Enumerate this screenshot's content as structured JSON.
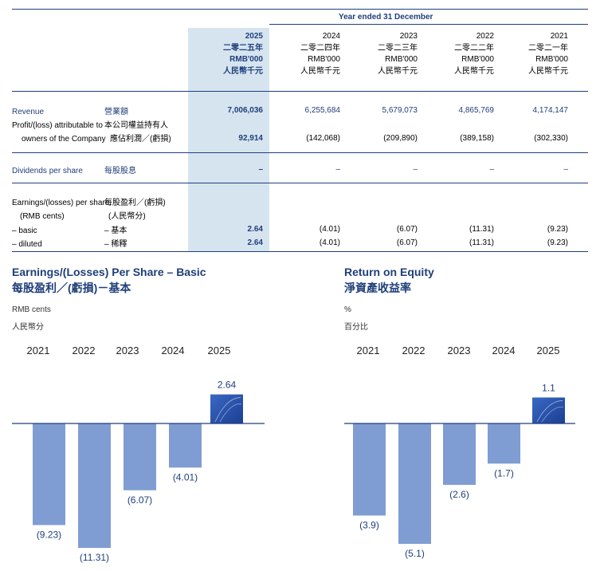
{
  "table": {
    "header_title": "Year ended 31 December",
    "columns": [
      {
        "year": "2025",
        "cn_year": "二零二五年",
        "unit": "RMB'000",
        "unit_cn": "人民幣千元"
      },
      {
        "year": "2024",
        "cn_year": "二零二四年",
        "unit": "RMB'000",
        "unit_cn": "人民幣千元"
      },
      {
        "year": "2023",
        "cn_year": "二零二三年",
        "unit": "RMB'000",
        "unit_cn": "人民幣千元"
      },
      {
        "year": "2022",
        "cn_year": "二零二二年",
        "unit": "RMB'000",
        "unit_cn": "人民幣千元"
      },
      {
        "year": "2021",
        "cn_year": "二零二一年",
        "unit": "RMB'000",
        "unit_cn": "人民幣千元"
      }
    ],
    "revenue": {
      "label": "Revenue",
      "label_cn": "營業額",
      "values": [
        "7,006,036",
        "6,255,684",
        "5,679,073",
        "4,865,769",
        "4,174,147"
      ]
    },
    "profit": {
      "label1": "Profit/(loss) attributable to",
      "label2": "owners of the Company",
      "label_cn1": "本公司權益持有人",
      "label_cn2": "應佔利潤／(虧損)",
      "values": [
        "92,914",
        "(142,068)",
        "(209,890)",
        "(389,158)",
        "(302,330)"
      ]
    },
    "dividends": {
      "label": "Dividends per share",
      "label_cn": "每股股息",
      "values": [
        "–",
        "–",
        "–",
        "–",
        "–"
      ]
    },
    "eps": {
      "label1": "Earnings/(losses) per share",
      "label2": "(RMB cents)",
      "label_cn1": "每股盈利／(虧損)",
      "label_cn2": "(人民幣分)"
    },
    "basic": {
      "label": "– basic",
      "label_cn": "– 基本",
      "values": [
        "2.64",
        "(4.01)",
        "(6.07)",
        "(11.31)",
        "(9.23)"
      ]
    },
    "diluted": {
      "label": "– diluted",
      "label_cn": "– 稀釋",
      "values": [
        "2.64",
        "(4.01)",
        "(6.07)",
        "(11.31)",
        "(9.23)"
      ]
    }
  },
  "chart_data": [
    {
      "type": "bar",
      "title": "Earnings/(Losses) Per Share – Basic",
      "title_cn": "每股盈利／(虧損)－基本",
      "unit": "RMB cents",
      "unit_cn": "人民幣分",
      "categories": [
        "2021",
        "2022",
        "2023",
        "2024",
        "2025"
      ],
      "values": [
        -9.23,
        -11.31,
        -6.07,
        -4.01,
        2.64
      ],
      "labels": [
        "(9.23)",
        "(11.31)",
        "(6.07)",
        "(4.01)",
        "2.64"
      ]
    },
    {
      "type": "bar",
      "title": "Return on Equity",
      "title_cn": "淨資產收益率",
      "unit": "%",
      "unit_cn": "百分比",
      "categories": [
        "2021",
        "2022",
        "2023",
        "2024",
        "2025"
      ],
      "values": [
        -3.9,
        -5.1,
        -2.6,
        -1.7,
        1.1
      ],
      "labels": [
        "(3.9)",
        "(5.1)",
        "(2.6)",
        "(1.7)",
        "1.1"
      ]
    }
  ],
  "colors": {
    "navy": "#1f3f7a",
    "bar": "#7f9dd2",
    "highlight": "#2a52a8",
    "column_shade": "#d6e4f0"
  }
}
